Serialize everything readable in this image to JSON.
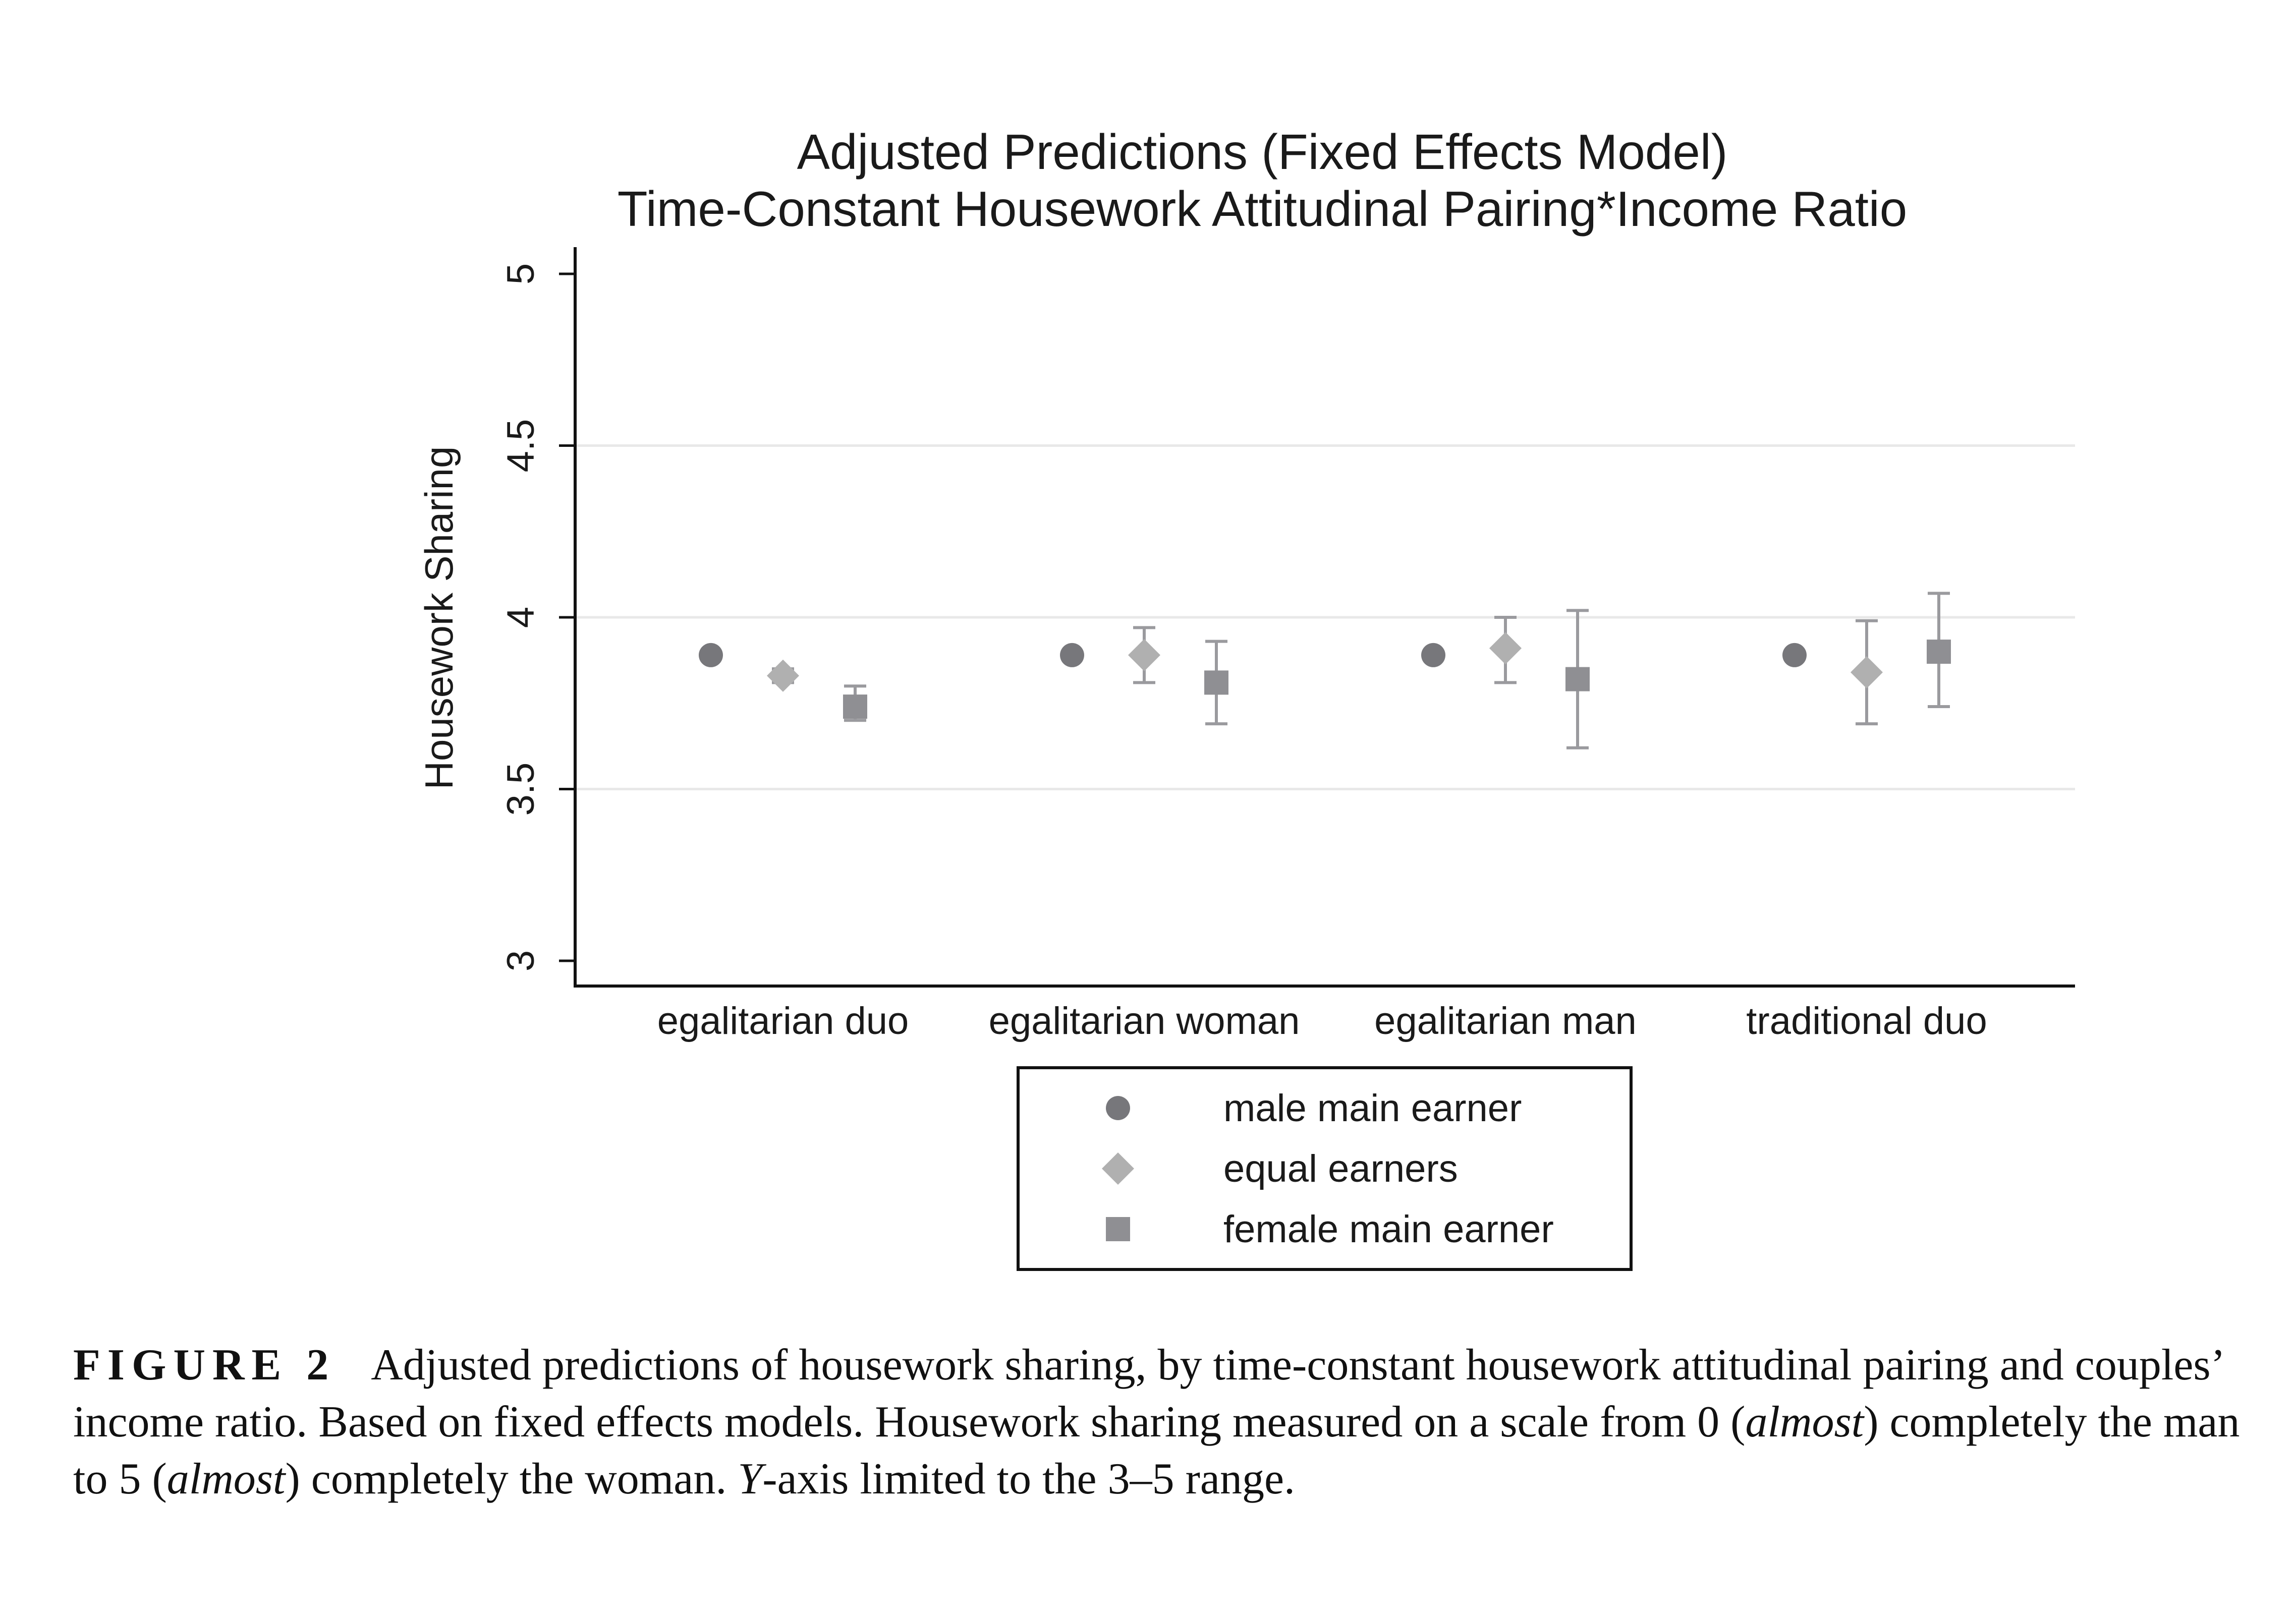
{
  "chart_data": {
    "type": "scatter",
    "title": "Adjusted Predictions (Fixed Effects Model)",
    "subtitle": "Time-Constant Housework Attitudinal Pairing*Income Ratio",
    "xlabel": "",
    "ylabel": "Housework Sharing",
    "ylim": [
      3,
      5
    ],
    "yticks": [
      "3",
      "3.5",
      "4",
      "4.5",
      "5"
    ],
    "ytick_values": [
      3,
      3.5,
      4,
      4.5,
      5
    ],
    "grid": true,
    "legend_position": "bottom",
    "categories": [
      "egalitarian duo",
      "egalitarian woman",
      "egalitarian man",
      "traditional duo"
    ],
    "series": [
      {
        "name": "male main earner",
        "marker": "circle",
        "color": "#77777b",
        "values": [
          3.89,
          3.89,
          3.89,
          3.89
        ],
        "ci_low": [
          3.88,
          3.88,
          3.88,
          3.88
        ],
        "ci_high": [
          3.9,
          3.9,
          3.9,
          3.9
        ]
      },
      {
        "name": "equal earners",
        "marker": "diamond",
        "color": "#b0b0b0",
        "values": [
          3.83,
          3.89,
          3.91,
          3.84
        ],
        "ci_low": [
          3.81,
          3.81,
          3.81,
          3.69
        ],
        "ci_high": [
          3.85,
          3.97,
          4.0,
          3.99
        ]
      },
      {
        "name": "female main earner",
        "marker": "square",
        "color": "#8f8f93",
        "values": [
          3.74,
          3.81,
          3.82,
          3.9
        ],
        "ci_low": [
          3.7,
          3.69,
          3.62,
          3.74
        ],
        "ci_high": [
          3.8,
          3.93,
          4.02,
          4.07
        ]
      }
    ]
  },
  "caption": {
    "label": "FIGURE 2",
    "text_1": "Adjusted predictions of housework sharing, by time-constant housework attitudinal pairing and couples’ income ratio. Based on fixed effects models. Housework sharing measured on a scale from 0 (",
    "italic_1": "almost",
    "text_2": ") completely the man to 5 (",
    "italic_2": "almost",
    "text_3": ") completely the woman. ",
    "italic_3": "Y",
    "text_4": "-axis limited to the 3–5 range."
  }
}
